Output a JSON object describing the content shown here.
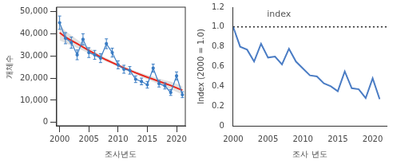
{
  "chart_data": [
    {
      "type": "line",
      "x_label": "조사년도",
      "y_label": "개체수",
      "x": [
        2000,
        2001,
        2002,
        2003,
        2004,
        2005,
        2006,
        2007,
        2008,
        2009,
        2010,
        2011,
        2012,
        2013,
        2014,
        2015,
        2016,
        2017,
        2018,
        2019,
        2020,
        2021
      ],
      "series": [
        {
          "color": "#3b7dc4",
          "marker": "circle",
          "values": [
            45000,
            38000,
            36000,
            30500,
            37500,
            31500,
            30500,
            29000,
            35500,
            31500,
            26000,
            24000,
            23500,
            19500,
            18500,
            17000,
            24500,
            17500,
            16500,
            13500,
            21000,
            12500
          ],
          "errors": [
            3000,
            2500,
            2500,
            2200,
            2500,
            2200,
            2000,
            2000,
            2200,
            2000,
            1800,
            1800,
            1700,
            1500,
            1500,
            1500,
            1800,
            1500,
            1400,
            1300,
            1800,
            1300
          ]
        },
        {
          "color": "#e8281e",
          "line_style": "solid",
          "values": [
            40500,
            38500,
            37000,
            35500,
            34000,
            32500,
            31000,
            29500,
            28200,
            27000,
            25800,
            24600,
            23500,
            22400,
            21400,
            20400,
            19500,
            18500,
            17600,
            16700,
            15600,
            14500
          ],
          "lower": [
            37000,
            35800,
            34700,
            33600,
            32400,
            31200,
            29900,
            28600,
            27400,
            26300,
            25100,
            23900,
            22800,
            21600,
            20500,
            19400,
            18300,
            17200,
            16100,
            15000,
            13800,
            12600
          ],
          "upper": [
            44000,
            41200,
            39300,
            37400,
            35600,
            33800,
            32100,
            30400,
            29000,
            27700,
            26500,
            25300,
            24200,
            23200,
            22300,
            21400,
            20700,
            19800,
            19100,
            18400,
            17400,
            16400
          ]
        }
      ],
      "xlim": [
        1999.5,
        2021.5
      ],
      "xticks": [
        2000,
        2005,
        2010,
        2015,
        2020
      ],
      "ylim": [
        -1500,
        52000
      ],
      "yticks": [
        0,
        {
          "value": 10000,
          "label": "10,000"
        },
        {
          "value": 20000,
          "label": "20,000"
        },
        {
          "value": 30000,
          "label": "30,000"
        },
        {
          "value": 40000,
          "label": "40,000"
        },
        {
          "value": 50000,
          "label": "50,000"
        }
      ],
      "grid": false
    },
    {
      "type": "line",
      "x_label": "조사 년도",
      "y_label": "Index (2000 = 1.0)",
      "annotations": [
        "index"
      ],
      "reference": {
        "value": 1.0,
        "line_style": "dotted",
        "color": "#222222"
      },
      "x": [
        2000,
        2001,
        2002,
        2003,
        2004,
        2005,
        2006,
        2007,
        2008,
        2009,
        2010,
        2011,
        2012,
        2013,
        2014,
        2015,
        2016,
        2017,
        2018,
        2019,
        2020,
        2021
      ],
      "series": [
        {
          "color": "#4a7cc4",
          "values": [
            1.0,
            0.8,
            0.77,
            0.65,
            0.83,
            0.69,
            0.7,
            0.62,
            0.78,
            0.65,
            0.58,
            0.51,
            0.5,
            0.43,
            0.4,
            0.35,
            0.55,
            0.38,
            0.37,
            0.28,
            0.48,
            0.27
          ]
        }
      ],
      "xlim": [
        2000,
        2022
      ],
      "xticks": [
        2000,
        2005,
        2010,
        2015,
        2020
      ],
      "ylim": [
        0,
        1.2
      ],
      "yticks": [
        0,
        0.2,
        0.4,
        0.6,
        0.8,
        {
          "value": 1.0,
          "label": "1.0"
        },
        1.2
      ],
      "grid": false
    }
  ]
}
